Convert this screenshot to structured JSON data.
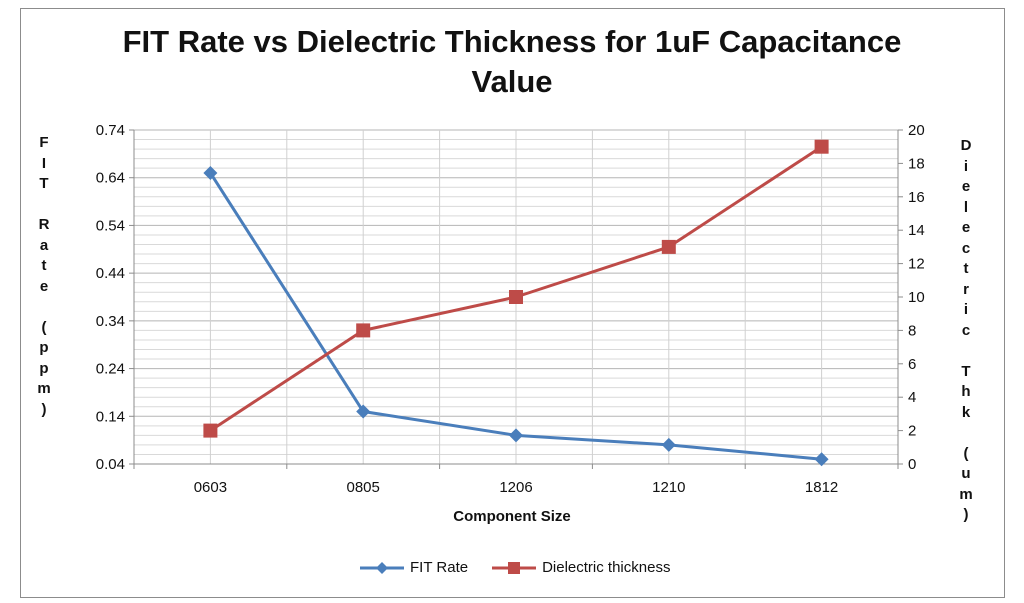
{
  "chart_data": {
    "type": "line",
    "title": "FIT Rate vs Dielectric Thickness for 1uF Capacitance Value",
    "title_lines": [
      "FIT Rate vs Dielectric Thickness for 1uF Capacitance",
      "Value"
    ],
    "xlabel": "Component Size",
    "ylabel": "FIT Rate (ppm)",
    "y2label": "Dielectric Thk (um)",
    "categories": [
      "0603",
      "0805",
      "1206",
      "1210",
      "1812"
    ],
    "y_ticks": [
      "0.74",
      "0.64",
      "0.54",
      "0.44",
      "0.34",
      "0.24",
      "0.14",
      "0.04"
    ],
    "y2_ticks": [
      "20",
      "18",
      "16",
      "14",
      "12",
      "10",
      "8",
      "6",
      "4",
      "2",
      "0"
    ],
    "ylim": [
      0.04,
      0.74
    ],
    "y2lim": [
      0,
      20
    ],
    "grid": true,
    "legend_position": "bottom",
    "series": [
      {
        "name": "FIT Rate",
        "axis": "left",
        "color": "#4a7ebb",
        "marker": "diamond",
        "values": [
          0.65,
          0.15,
          0.1,
          0.08,
          0.05
        ]
      },
      {
        "name": "Dielectric thickness",
        "axis": "right",
        "color": "#be4b48",
        "marker": "square",
        "values": [
          2,
          8,
          10,
          13,
          19
        ]
      }
    ]
  },
  "legend": {
    "fit_rate": "FIT Rate",
    "dielectric": "Dielectric thickness"
  }
}
